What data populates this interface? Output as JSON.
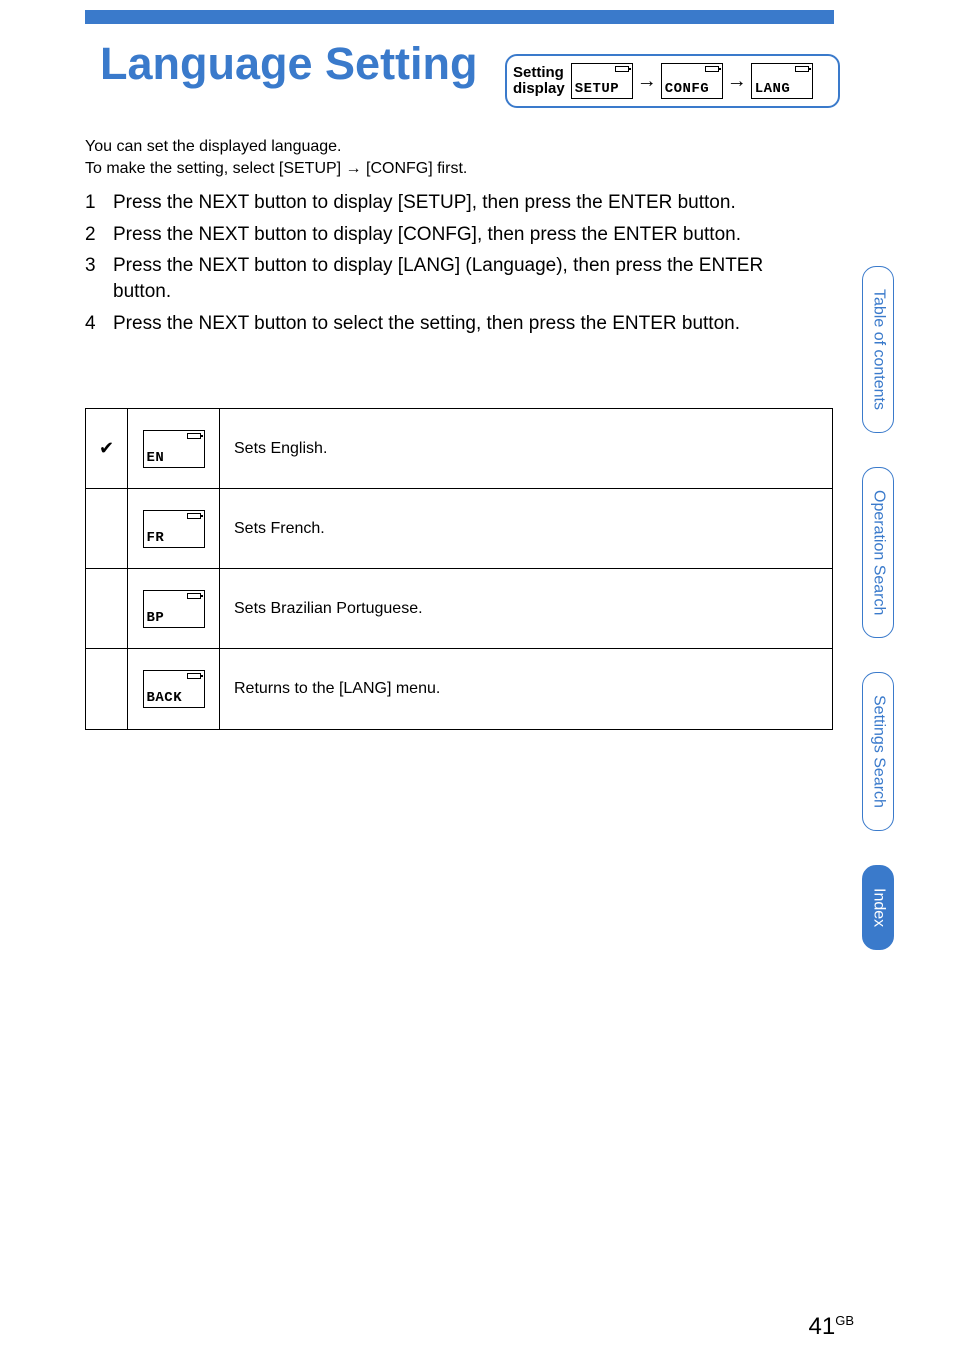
{
  "title": "Language Setting",
  "setting_display": {
    "label": "Setting\ndisplay",
    "screens": [
      "SETUP",
      "CONFG",
      "LANG"
    ]
  },
  "intro_line1": "You can set the displayed language.",
  "intro_line2": "To make the setting, select [SETUP] → [CONFG] first.",
  "steps": [
    {
      "num": "1",
      "text": "Press the NEXT button to display [SETUP], then press the ENTER button."
    },
    {
      "num": "2",
      "text": "Press the NEXT button to display [CONFG], then press the ENTER button."
    },
    {
      "num": "3",
      "text": "Press the NEXT button to display [LANG] (Language), then press the ENTER button."
    },
    {
      "num": "4",
      "text": "Press the NEXT button to select the setting, then press the ENTER button."
    }
  ],
  "table": [
    {
      "checked": true,
      "lcd": "EN",
      "desc": "Sets English."
    },
    {
      "checked": false,
      "lcd": "FR",
      "desc": "Sets French."
    },
    {
      "checked": false,
      "lcd": "BP",
      "desc": "Sets Brazilian Portuguese."
    },
    {
      "checked": false,
      "lcd": "BACK",
      "desc": "Returns to the [LANG] menu."
    }
  ],
  "tabs": [
    {
      "label": "Table of\ncontents",
      "filled": false
    },
    {
      "label": "Operation\nSearch",
      "filled": false
    },
    {
      "label": "Settings\nSearch",
      "filled": false
    },
    {
      "label": "Index",
      "filled": true
    }
  ],
  "page_number": "41",
  "page_suffix": "GB",
  "colors": {
    "accent": "#3a7acb",
    "text": "#000000",
    "background": "#ffffff"
  }
}
